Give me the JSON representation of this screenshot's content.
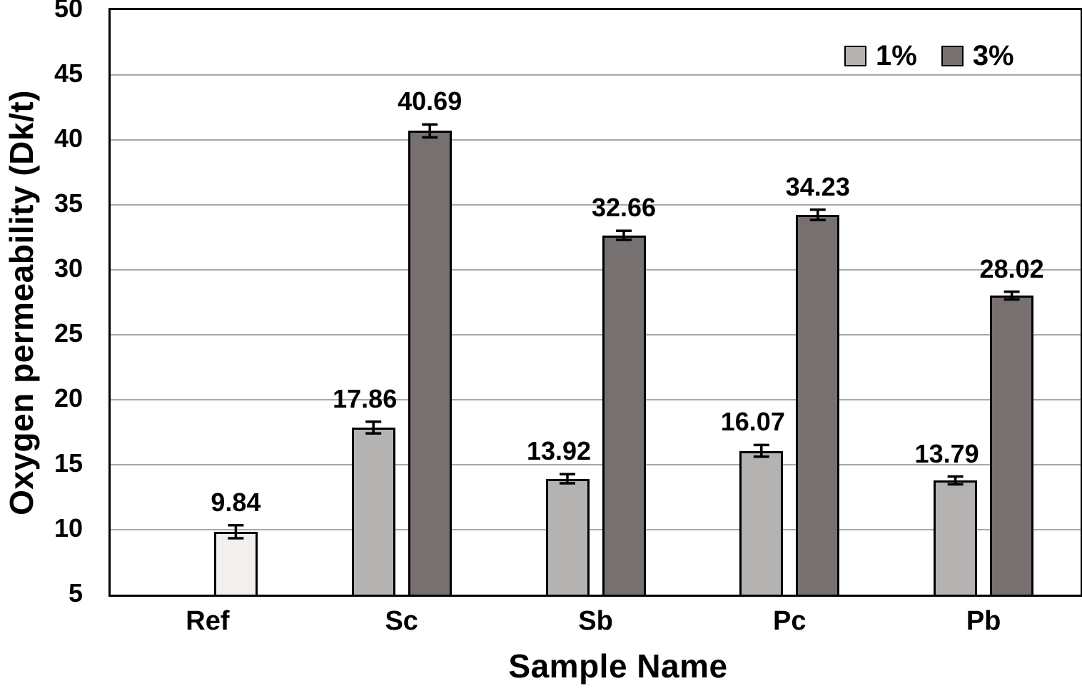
{
  "chart_data": {
    "type": "bar",
    "title": "",
    "xlabel": "Sample Name",
    "ylabel": "Oxygen permeability (Dk/t)",
    "categories": [
      "Ref",
      "Sc",
      "Sb",
      "Pc",
      "Pb"
    ],
    "ylim": [
      5,
      50
    ],
    "yticks": [
      5,
      10,
      15,
      20,
      25,
      30,
      35,
      40,
      45,
      50
    ],
    "grid": "horizontal",
    "value_label_decimals": 2,
    "legend": {
      "position": "top-right-inside",
      "entries": [
        {
          "label": "1%",
          "color": "#b5b3b2"
        },
        {
          "label": "3%",
          "color": "#767170"
        }
      ]
    },
    "bars": [
      {
        "category": "Ref",
        "series": "Ref",
        "value": 9.84,
        "error": 0.5,
        "color": "#f1f0ee",
        "slot": 1
      },
      {
        "category": "Sc",
        "series": "1%",
        "value": 17.86,
        "error": 0.45,
        "color": "#b5b3b2",
        "slot": 0
      },
      {
        "category": "Sc",
        "series": "3%",
        "value": 40.69,
        "error": 0.5,
        "color": "#767170",
        "slot": 1
      },
      {
        "category": "Sb",
        "series": "1%",
        "value": 13.92,
        "error": 0.35,
        "color": "#b5b3b2",
        "slot": 0
      },
      {
        "category": "Sb",
        "series": "3%",
        "value": 32.66,
        "error": 0.35,
        "color": "#767170",
        "slot": 1
      },
      {
        "category": "Pc",
        "series": "1%",
        "value": 16.07,
        "error": 0.45,
        "color": "#b5b3b2",
        "slot": 0
      },
      {
        "category": "Pc",
        "series": "3%",
        "value": 34.23,
        "error": 0.4,
        "color": "#767170",
        "slot": 1
      },
      {
        "category": "Pb",
        "series": "1%",
        "value": 13.79,
        "error": 0.3,
        "color": "#b5b3b2",
        "slot": 0
      },
      {
        "category": "Pb",
        "series": "3%",
        "value": 28.02,
        "error": 0.3,
        "color": "#767170",
        "slot": 1
      }
    ],
    "colors": {
      "background": "#ffffff",
      "frame": "#000000",
      "gridline": "#a8a8a8",
      "bar_border": "#000000",
      "error_bar": "#000000",
      "text": "#000000"
    }
  }
}
